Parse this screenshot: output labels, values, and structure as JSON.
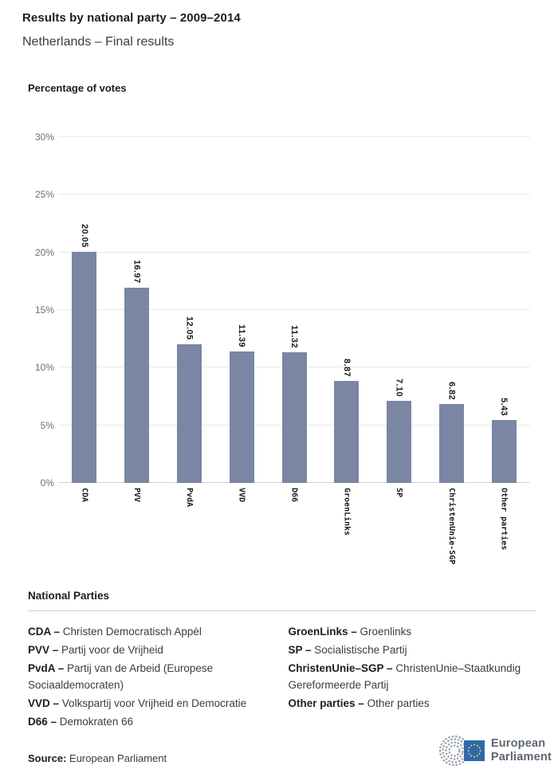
{
  "header": {
    "title": "Results by national party – 2009–2014",
    "subtitle": "Netherlands – Final results"
  },
  "chart_data": {
    "type": "bar",
    "title": "Percentage of votes",
    "ylabel": "Percentage of votes",
    "xlabel": "",
    "categories": [
      "CDA",
      "PVV",
      "PvdA",
      "VVD",
      "D66",
      "GroenLinks",
      "SP",
      "ChristenUnie-SGP",
      "Other parties"
    ],
    "values": [
      20.05,
      16.97,
      12.05,
      11.39,
      11.32,
      8.87,
      7.1,
      6.82,
      5.43
    ],
    "value_labels": [
      "20.05",
      "16.97",
      "12.05",
      "11.39",
      "11.32",
      "8.87",
      "7.10",
      "6.82",
      "5.43"
    ],
    "ylim": [
      0,
      30
    ],
    "yticks": [
      0,
      5,
      10,
      15,
      20,
      25,
      30
    ],
    "ytick_labels": [
      "0%",
      "5%",
      "10%",
      "15%",
      "20%",
      "25%",
      "30%"
    ],
    "grid": true,
    "legend_position": "none",
    "bar_color": "#7a86a3"
  },
  "legend": {
    "heading": "National Parties",
    "left_column": [
      {
        "term": "CDA –",
        "description": "Christen Democratisch Appèl"
      },
      {
        "term": "PVV –",
        "description": "Partij voor de Vrijheid"
      },
      {
        "term": "PvdA –",
        "description": "Partij van de Arbeid (Europese Sociaaldemocraten)"
      },
      {
        "term": "VVD –",
        "description": "Volkspartij voor Vrijheid en Democratie"
      },
      {
        "term": "D66 –",
        "description": "Demokraten 66"
      }
    ],
    "right_column": [
      {
        "term": "GroenLinks –",
        "description": "Groenlinks"
      },
      {
        "term": "SP –",
        "description": "Socialistische Partij"
      },
      {
        "term": "ChristenUnie–SGP –",
        "description": "ChristenUnie–Staatkundig Gereformeerde Partij"
      },
      {
        "term": "Other parties –",
        "description": "Other parties"
      }
    ]
  },
  "footer": {
    "source_label": "Source:",
    "source_value": "European Parliament",
    "logo": {
      "name": "european-parliament-logo",
      "text_line1": "European",
      "text_line2": "Parliament",
      "flag_blue": "#2e68ad",
      "star_yellow": "#ffd617",
      "hemicycle_gray": "#9aa1a8",
      "text_gray": "#5d6771"
    }
  }
}
